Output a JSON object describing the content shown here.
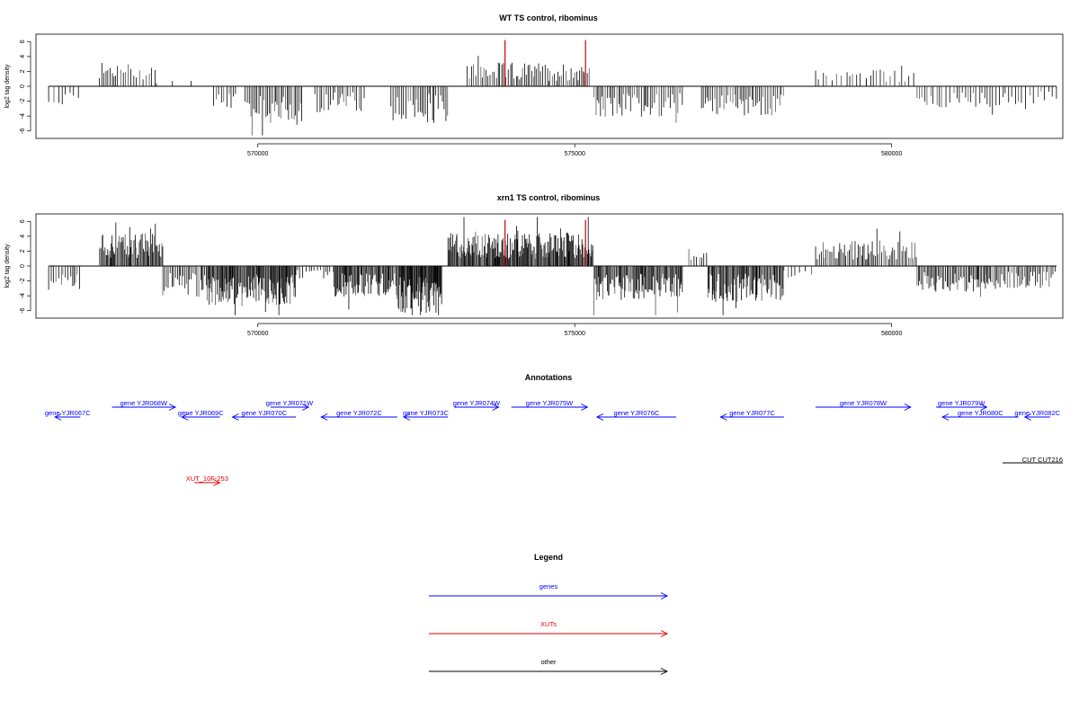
{
  "chart_data": [
    {
      "type": "bar",
      "title": "WT TS control, ribominus",
      "ylabel": "log2 tag density",
      "xlim": [
        566500,
        582700
      ],
      "ylim": [
        -7,
        7
      ],
      "y_ticks": [
        -6,
        -4,
        -2,
        0,
        2,
        4,
        6
      ],
      "x_ticks": [
        570000,
        575000,
        580000
      ],
      "x_tick_labels": [
        "570000",
        "575000",
        "580000"
      ],
      "grid": false,
      "highlight_color": "#cc0000",
      "highlights": [
        {
          "x": 573900,
          "y": 6.2
        },
        {
          "x": 575170,
          "y": 6.2
        }
      ],
      "segments": [
        {
          "start": 566700,
          "end": 567200,
          "sign": -1,
          "mean": 1.8,
          "step": 60
        },
        {
          "start": 567500,
          "end": 568400,
          "sign": 1,
          "mean": 2.0,
          "step": 40
        },
        {
          "start": 568400,
          "end": 569000,
          "sign": 1,
          "mean": 0.6,
          "step": 220
        },
        {
          "start": 569300,
          "end": 569700,
          "sign": -1,
          "mean": 2.2,
          "step": 40
        },
        {
          "start": 569800,
          "end": 570700,
          "sign": -1,
          "mean": 3.3,
          "step": 25
        },
        {
          "start": 570900,
          "end": 571700,
          "sign": -1,
          "mean": 2.2,
          "step": 35
        },
        {
          "start": 572100,
          "end": 573000,
          "sign": -1,
          "mean": 2.8,
          "step": 30
        },
        {
          "start": 573300,
          "end": 575250,
          "sign": 1,
          "mean": 2.0,
          "step": 30
        },
        {
          "start": 575300,
          "end": 576700,
          "sign": -1,
          "mean": 2.6,
          "step": 30
        },
        {
          "start": 577000,
          "end": 578300,
          "sign": -1,
          "mean": 2.5,
          "step": 30
        },
        {
          "start": 578800,
          "end": 579600,
          "sign": 1,
          "mean": 1.4,
          "step": 70
        },
        {
          "start": 579600,
          "end": 580400,
          "sign": 1,
          "mean": 1.5,
          "step": 60
        },
        {
          "start": 580400,
          "end": 582000,
          "sign": -1,
          "mean": 1.8,
          "step": 50
        },
        {
          "start": 582000,
          "end": 582600,
          "sign": -1,
          "mean": 1.5,
          "step": 60
        }
      ]
    },
    {
      "type": "bar",
      "title": "xrn1 TS control, ribominus",
      "ylabel": "log2 tag density",
      "xlim": [
        566500,
        582700
      ],
      "ylim": [
        -7,
        7
      ],
      "y_ticks": [
        -6,
        -4,
        -2,
        0,
        2,
        4,
        6
      ],
      "x_ticks": [
        570000,
        575000,
        580000
      ],
      "x_tick_labels": [
        "570000",
        "575000",
        "580000"
      ],
      "grid": false,
      "highlight_color": "#cc0000",
      "highlights": [
        {
          "x": 573900,
          "y": 6.2
        },
        {
          "x": 575170,
          "y": 6.2
        }
      ],
      "segments": [
        {
          "start": 566700,
          "end": 567200,
          "sign": -1,
          "mean": 2.0,
          "step": 35
        },
        {
          "start": 567500,
          "end": 568500,
          "sign": 1,
          "mean": 2.8,
          "step": 15
        },
        {
          "start": 568500,
          "end": 569200,
          "sign": -1,
          "mean": 2.6,
          "step": 25
        },
        {
          "start": 569200,
          "end": 570600,
          "sign": -1,
          "mean": 3.3,
          "step": 12
        },
        {
          "start": 570600,
          "end": 571200,
          "sign": -1,
          "mean": 1.2,
          "step": 40
        },
        {
          "start": 571200,
          "end": 572200,
          "sign": -1,
          "mean": 2.6,
          "step": 15
        },
        {
          "start": 572200,
          "end": 572900,
          "sign": -1,
          "mean": 4.0,
          "step": 10
        },
        {
          "start": 573000,
          "end": 575300,
          "sign": 1,
          "mean": 2.8,
          "step": 12
        },
        {
          "start": 575300,
          "end": 576700,
          "sign": -1,
          "mean": 2.9,
          "step": 15
        },
        {
          "start": 576800,
          "end": 577100,
          "sign": 1,
          "mean": 1.8,
          "step": 45
        },
        {
          "start": 577100,
          "end": 578300,
          "sign": -1,
          "mean": 3.0,
          "step": 15
        },
        {
          "start": 578300,
          "end": 578800,
          "sign": -1,
          "mean": 1.0,
          "step": 80
        },
        {
          "start": 578800,
          "end": 580400,
          "sign": 1,
          "mean": 2.2,
          "step": 25
        },
        {
          "start": 580400,
          "end": 581500,
          "sign": -1,
          "mean": 2.2,
          "step": 20
        },
        {
          "start": 581500,
          "end": 582600,
          "sign": -1,
          "mean": 2.0,
          "step": 25
        }
      ]
    }
  ],
  "annotations": {
    "title": "Annotations",
    "genes_color": "#0000ff",
    "xuts_color": "#dd0000",
    "other_color": "#000000",
    "genes": [
      {
        "label": "gene YJR067C",
        "start": 566800,
        "end": 567200,
        "strand": "-",
        "row": 1
      },
      {
        "label": "gene YJR068W",
        "start": 567700,
        "end": 568700,
        "strand": "+",
        "row": 0
      },
      {
        "label": "gene YJR069C",
        "start": 568800,
        "end": 569400,
        "strand": "-",
        "row": 1
      },
      {
        "label": "gene YJR070C",
        "start": 569600,
        "end": 570600,
        "strand": "-",
        "row": 1
      },
      {
        "label": "gene YJR071W",
        "start": 570200,
        "end": 570800,
        "strand": "+",
        "row": 0
      },
      {
        "label": "gene YJR072C",
        "start": 571000,
        "end": 572200,
        "strand": "-",
        "row": 1
      },
      {
        "label": "gene YJR073C",
        "start": 572300,
        "end": 573000,
        "strand": "-",
        "row": 1
      },
      {
        "label": "gene YJR074W",
        "start": 573100,
        "end": 573800,
        "strand": "+",
        "row": 0
      },
      {
        "label": "gene YJR075W",
        "start": 574000,
        "end": 575200,
        "strand": "+",
        "row": 0
      },
      {
        "label": "gene YJR076C",
        "start": 575350,
        "end": 576600,
        "strand": "-",
        "row": 1
      },
      {
        "label": "gene YJR077C",
        "start": 577300,
        "end": 578300,
        "strand": "-",
        "row": 1
      },
      {
        "label": "gene YJR078W",
        "start": 578800,
        "end": 580300,
        "strand": "+",
        "row": 0
      },
      {
        "label": "gene YJR079W",
        "start": 580700,
        "end": 581500,
        "strand": "+",
        "row": 0
      },
      {
        "label": "gene YJR080C",
        "start": 580800,
        "end": 582000,
        "strand": "-",
        "row": 1
      },
      {
        "label": "gene YJR082C",
        "start": 582100,
        "end": 582500,
        "strand": "-",
        "row": 1
      }
    ],
    "xuts": [
      {
        "label": "XUT_10F-253",
        "start": 569000,
        "end": 569400,
        "strand": "+"
      }
    ],
    "other": [
      {
        "label": "CUT CUT216",
        "start": 581750,
        "end": 582700,
        "strand": "+"
      }
    ]
  },
  "legend": {
    "title": "Legend",
    "items": [
      {
        "label": "genes",
        "color": "#0000ff"
      },
      {
        "label": "XUTs",
        "color": "#dd0000"
      },
      {
        "label": "other",
        "color": "#000000"
      }
    ]
  }
}
